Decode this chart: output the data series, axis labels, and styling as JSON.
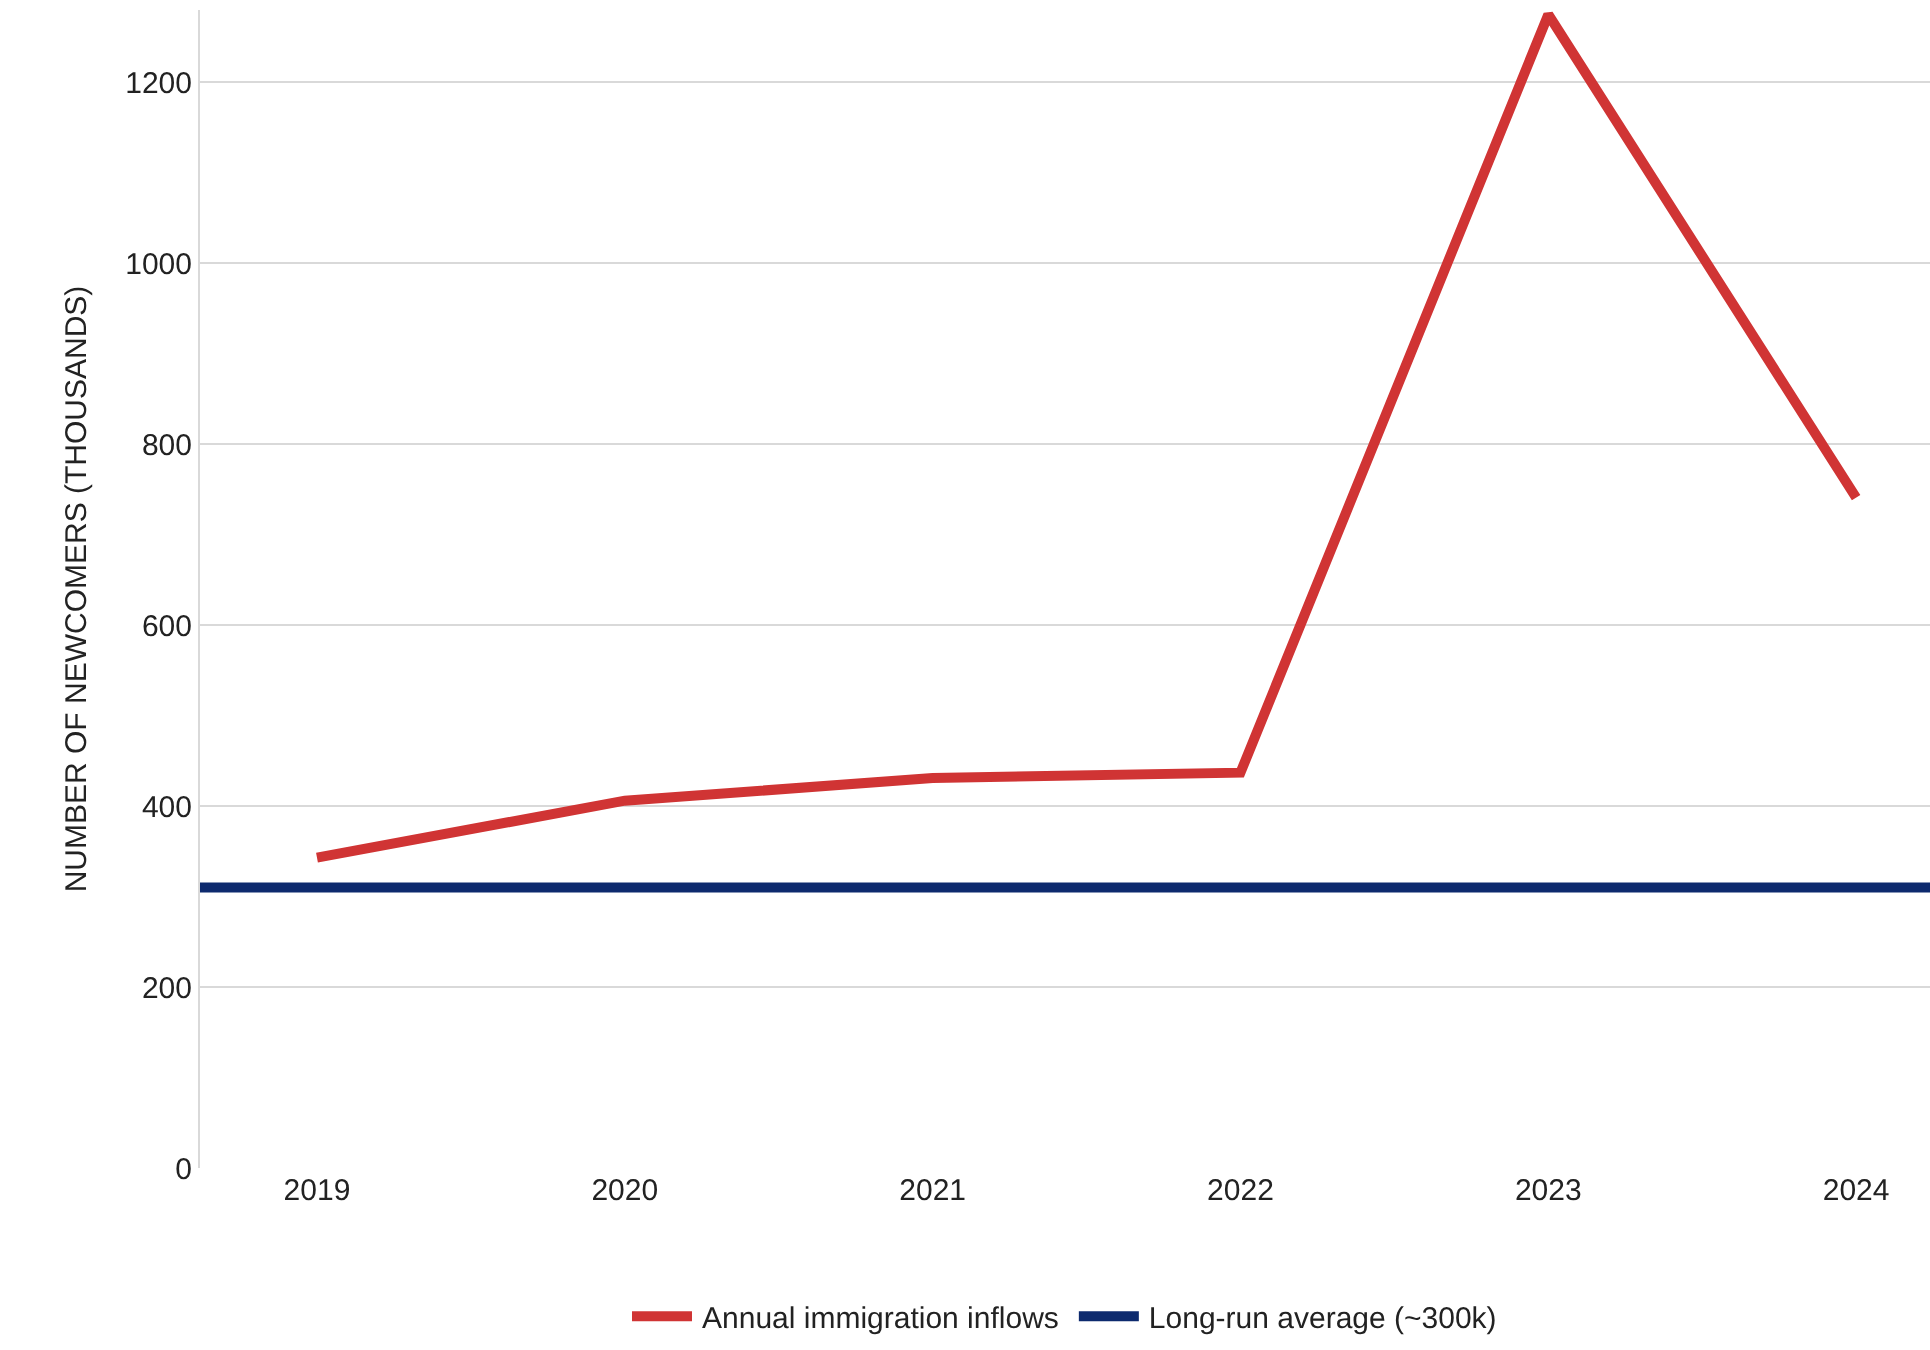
{
  "chart_data": {
    "type": "line",
    "ylabel": "NUMBER OF NEWCOMERS (THOUSANDS)",
    "categories": [
      "2019",
      "2020",
      "2021",
      "2022",
      "2023",
      "2024"
    ],
    "series": [
      {
        "name": "Annual immigration inflows",
        "color": "#d03434",
        "values": [
          343,
          406,
          431,
          437,
          1275,
          741
        ]
      }
    ],
    "ref_lines": [
      {
        "axis": "y",
        "value": 310,
        "label": "Long-run average (~300k)",
        "color": "#0d2a6e",
        "line_style": "solid"
      }
    ],
    "ylim": [
      0,
      1280
    ],
    "yticks": [
      0,
      200,
      400,
      600,
      800,
      1000,
      1200
    ],
    "grid": "y",
    "legend": "bottom",
    "marker": "none",
    "line_style": "solid"
  }
}
